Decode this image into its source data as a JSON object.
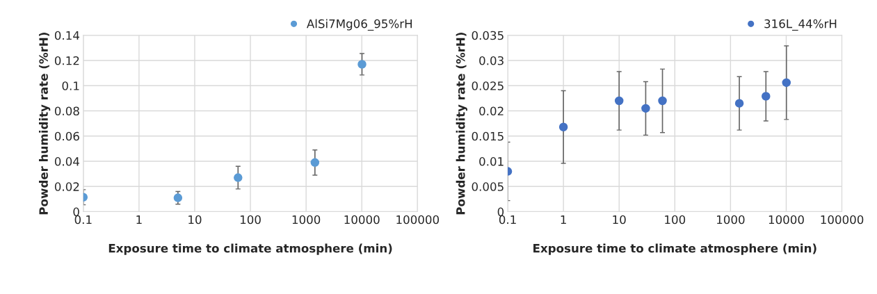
{
  "chart_data": [
    {
      "type": "scatter",
      "xlabel": "Exposure time to climate atmosphere (min)",
      "ylabel": "Powder humidity rate (%rH)",
      "log": "x",
      "xlim": [
        0.1,
        100000
      ],
      "xticks": [
        0.1,
        1,
        10,
        100,
        1000,
        10000,
        100000
      ],
      "ylim": [
        0,
        0.14
      ],
      "yticks": [
        0,
        0.02,
        0.04,
        0.06,
        0.08,
        0.1,
        0.12,
        0.14
      ],
      "grid": true,
      "legend": "top right",
      "marker": "circle",
      "series": [
        {
          "name": "AlSi7Mg06_95%rH",
          "color": "#5b9bd5",
          "x": [
            0.1,
            5,
            60,
            1440,
            10080
          ],
          "values": [
            0.0115,
            0.011,
            0.027,
            0.039,
            0.117
          ],
          "errors": [
            0.006,
            0.005,
            0.009,
            0.01,
            0.0085
          ]
        }
      ]
    },
    {
      "type": "scatter",
      "xlabel": "Exposure time to climate atmosphere (min)",
      "ylabel": "Powder humidity rate (%rH)",
      "log": "x",
      "xlim": [
        0.1,
        100000
      ],
      "xticks": [
        0.1,
        1,
        10,
        100,
        1000,
        10000,
        100000
      ],
      "ylim": [
        0,
        0.035
      ],
      "yticks": [
        0,
        0.005,
        0.01,
        0.015,
        0.02,
        0.025,
        0.03,
        0.035
      ],
      "grid": true,
      "legend": "top right",
      "marker": "circle",
      "series": [
        {
          "name": "316L_44%rH",
          "color": "#4472c4",
          "x": [
            0.1,
            1,
            10,
            30,
            60,
            1440,
            4320,
            10080
          ],
          "values": [
            0.008,
            0.0168,
            0.022,
            0.0205,
            0.022,
            0.0215,
            0.0229,
            0.0256
          ],
          "errors": [
            0.0058,
            0.0072,
            0.0058,
            0.0053,
            0.0063,
            0.0053,
            0.0049,
            0.0073
          ]
        }
      ]
    }
  ]
}
